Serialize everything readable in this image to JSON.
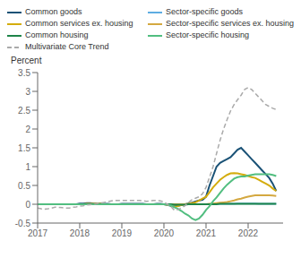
{
  "chart_data": {
    "type": "line",
    "y_label": "Percent",
    "legend": "top",
    "grid": false,
    "x": [
      2017.0,
      2017.083,
      2017.167,
      2017.25,
      2017.333,
      2017.417,
      2017.5,
      2017.583,
      2017.667,
      2017.75,
      2017.833,
      2017.917,
      2018.0,
      2018.083,
      2018.167,
      2018.25,
      2018.333,
      2018.417,
      2018.5,
      2018.583,
      2018.667,
      2018.75,
      2018.833,
      2018.917,
      2019.0,
      2019.083,
      2019.167,
      2019.25,
      2019.333,
      2019.417,
      2019.5,
      2019.583,
      2019.667,
      2019.75,
      2019.833,
      2019.917,
      2020.0,
      2020.083,
      2020.167,
      2020.25,
      2020.333,
      2020.417,
      2020.5,
      2020.583,
      2020.667,
      2020.75,
      2020.833,
      2020.917,
      2021.0,
      2021.083,
      2021.167,
      2021.25,
      2021.333,
      2021.417,
      2021.5,
      2021.583,
      2021.667,
      2021.75,
      2021.833,
      2021.917,
      2022.0,
      2022.083,
      2022.167,
      2022.25,
      2022.333,
      2022.417,
      2022.5,
      2022.583,
      2022.667
    ],
    "xlim": [
      2017.0,
      2022.83
    ],
    "xticks": [
      2017,
      2018,
      2019,
      2020,
      2021,
      2022
    ],
    "ylim": [
      -0.5,
      3.5
    ],
    "yticks": [
      -0.5,
      0.0,
      0.5,
      1.0,
      1.5,
      2.0,
      2.5,
      3.0,
      3.5
    ],
    "series": [
      {
        "name": "Common goods",
        "color": "#1a5276",
        "line_style": "solid",
        "values": [
          0.0,
          0.0,
          0.0,
          0.0,
          0.0,
          0.0,
          0.0,
          0.0,
          0.0,
          0.0,
          0.0,
          0.0,
          0.02,
          0.02,
          0.03,
          0.03,
          0.02,
          0.02,
          0.02,
          0.01,
          0.01,
          0.0,
          0.0,
          0.0,
          0.01,
          0.01,
          0.01,
          0.01,
          0.01,
          0.01,
          0.01,
          0.0,
          0.0,
          0.0,
          0.01,
          0.01,
          0.0,
          -0.02,
          -0.04,
          -0.06,
          -0.04,
          -0.02,
          0.0,
          0.02,
          0.04,
          0.07,
          0.1,
          0.12,
          0.2,
          0.5,
          0.75,
          1.0,
          1.1,
          1.15,
          1.2,
          1.25,
          1.35,
          1.45,
          1.5,
          1.4,
          1.3,
          1.2,
          1.1,
          1.0,
          0.9,
          0.8,
          0.7,
          0.55,
          0.35
        ]
      },
      {
        "name": "Sector-specific goods",
        "color": "#5dade2",
        "line_style": "solid",
        "values": [
          0.0,
          0.0,
          0.0,
          0.0,
          0.0,
          0.0,
          0.0,
          0.0,
          0.0,
          0.0,
          0.0,
          0.0,
          0.0,
          0.0,
          0.0,
          0.0,
          0.0,
          0.0,
          0.0,
          0.0,
          0.0,
          0.0,
          0.0,
          0.0,
          0.0,
          0.0,
          0.0,
          0.0,
          0.0,
          0.0,
          0.0,
          0.0,
          0.0,
          0.0,
          0.0,
          0.0,
          0.0,
          0.0,
          0.0,
          0.0,
          0.0,
          0.0,
          0.0,
          0.0,
          0.0,
          0.0,
          0.0,
          0.0,
          0.0,
          0.0,
          0.0,
          0.01,
          0.01,
          0.01,
          0.01,
          0.01,
          0.01,
          0.02,
          0.02,
          0.02,
          0.02,
          0.02,
          0.02,
          0.01,
          0.01,
          0.01,
          0.01,
          0.01,
          0.01
        ]
      },
      {
        "name": "Common services ex. housing",
        "color": "#d4ac0d",
        "line_style": "solid",
        "values": [
          0.0,
          0.0,
          0.0,
          0.0,
          0.0,
          0.0,
          0.0,
          0.0,
          0.0,
          0.0,
          0.0,
          0.0,
          0.0,
          0.0,
          0.01,
          0.01,
          0.01,
          0.01,
          0.01,
          0.0,
          0.0,
          0.0,
          0.0,
          0.0,
          0.0,
          0.0,
          0.0,
          0.0,
          0.0,
          0.0,
          0.0,
          0.0,
          0.0,
          0.0,
          0.0,
          0.0,
          0.0,
          -0.01,
          -0.03,
          -0.07,
          -0.05,
          -0.02,
          0.0,
          0.01,
          0.03,
          0.05,
          0.1,
          0.15,
          0.2,
          0.32,
          0.45,
          0.55,
          0.65,
          0.72,
          0.78,
          0.82,
          0.83,
          0.82,
          0.8,
          0.78,
          0.75,
          0.72,
          0.7,
          0.65,
          0.6,
          0.55,
          0.5,
          0.42,
          0.35
        ]
      },
      {
        "name": "Sector-specific services ex. housing",
        "color": "#d4a840",
        "line_style": "solid",
        "values": [
          0.0,
          0.0,
          0.0,
          0.0,
          0.0,
          0.0,
          0.0,
          0.0,
          0.0,
          0.0,
          0.0,
          0.0,
          0.0,
          0.0,
          0.0,
          0.0,
          0.0,
          0.0,
          0.0,
          0.0,
          0.0,
          0.0,
          0.0,
          0.0,
          0.0,
          0.0,
          0.0,
          0.0,
          0.0,
          0.0,
          0.0,
          0.0,
          0.0,
          0.0,
          0.0,
          0.0,
          0.0,
          0.0,
          0.0,
          0.0,
          0.0,
          0.0,
          0.0,
          0.0,
          0.0,
          0.0,
          0.0,
          0.0,
          0.0,
          0.01,
          0.02,
          0.03,
          0.04,
          0.05,
          0.06,
          0.08,
          0.1,
          0.13,
          0.15,
          0.18,
          0.2,
          0.22,
          0.24,
          0.24,
          0.24,
          0.24,
          0.24,
          0.23,
          0.22
        ]
      },
      {
        "name": "Common housing",
        "color": "#1e8449",
        "line_style": "solid",
        "values": [
          0.0,
          0.0,
          0.0,
          0.0,
          0.0,
          0.0,
          0.0,
          0.0,
          0.0,
          0.0,
          0.0,
          0.0,
          0.0,
          0.0,
          0.0,
          0.0,
          0.0,
          0.0,
          0.0,
          0.0,
          0.0,
          0.0,
          0.0,
          0.0,
          0.0,
          0.0,
          0.0,
          0.0,
          0.0,
          0.0,
          0.0,
          0.0,
          0.0,
          0.0,
          0.0,
          0.0,
          0.0,
          0.0,
          0.0,
          -0.01,
          -0.01,
          -0.01,
          -0.01,
          0.0,
          0.0,
          0.0,
          0.0,
          0.0,
          0.0,
          0.0,
          0.0,
          0.0,
          0.01,
          0.01,
          0.01,
          0.01,
          0.01,
          0.01,
          0.01,
          0.01,
          0.01,
          0.01,
          0.01,
          0.01,
          0.01,
          0.01,
          0.01,
          0.01,
          0.01
        ]
      },
      {
        "name": "Sector-specific housing",
        "color": "#52be80",
        "line_style": "solid",
        "values": [
          0.0,
          0.0,
          0.0,
          0.0,
          0.0,
          0.0,
          0.0,
          0.0,
          0.0,
          0.0,
          0.0,
          0.0,
          0.0,
          0.0,
          0.0,
          0.0,
          0.0,
          0.0,
          0.0,
          0.0,
          0.0,
          0.0,
          0.0,
          0.0,
          0.0,
          0.0,
          0.0,
          0.0,
          0.0,
          0.0,
          0.0,
          0.0,
          0.0,
          0.0,
          0.0,
          0.0,
          0.0,
          -0.01,
          -0.03,
          -0.08,
          -0.12,
          -0.18,
          -0.25,
          -0.3,
          -0.38,
          -0.42,
          -0.38,
          -0.28,
          -0.15,
          -0.05,
          0.08,
          0.18,
          0.3,
          0.42,
          0.52,
          0.6,
          0.68,
          0.72,
          0.74,
          0.74,
          0.76,
          0.78,
          0.8,
          0.8,
          0.8,
          0.8,
          0.8,
          0.78,
          0.75
        ]
      },
      {
        "name": "Multivariate Core Trend",
        "color": "#aaaaaa",
        "line_style": "dashed",
        "values": [
          -0.1,
          -0.12,
          -0.13,
          -0.12,
          -0.1,
          -0.08,
          -0.08,
          -0.09,
          -0.1,
          -0.1,
          -0.08,
          -0.07,
          -0.05,
          -0.04,
          -0.02,
          -0.01,
          0.0,
          0.02,
          0.03,
          0.05,
          0.07,
          0.09,
          0.1,
          0.1,
          0.1,
          0.1,
          0.1,
          0.1,
          0.1,
          0.1,
          0.09,
          0.08,
          0.09,
          0.1,
          0.1,
          0.09,
          0.06,
          0.0,
          -0.06,
          -0.16,
          -0.14,
          -0.1,
          -0.04,
          0.05,
          0.12,
          0.16,
          0.2,
          0.28,
          0.45,
          0.72,
          1.0,
          1.35,
          1.7,
          2.0,
          2.25,
          2.48,
          2.65,
          2.78,
          2.9,
          3.05,
          3.1,
          3.05,
          2.95,
          2.85,
          2.75,
          2.65,
          2.6,
          2.55,
          2.52
        ]
      }
    ]
  }
}
